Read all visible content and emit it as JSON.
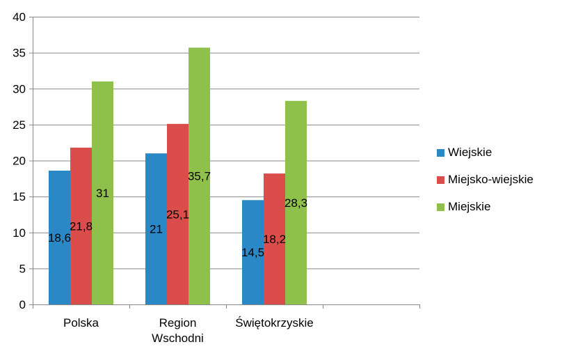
{
  "chart_data": {
    "type": "bar",
    "categories": [
      "Polska",
      "Region\nWschodni",
      "Świętokrzyskie",
      ""
    ],
    "series": [
      {
        "name": "Wiejskie",
        "values": [
          18.6,
          21,
          14.5,
          null
        ],
        "labels": [
          "18,6",
          "21",
          "14,5",
          ""
        ],
        "color": "#2b88c7"
      },
      {
        "name": "Miejsko-wiejskie",
        "values": [
          21.8,
          25.1,
          18.2,
          null
        ],
        "labels": [
          "21,8",
          "25,1",
          "18,2",
          ""
        ],
        "color": "#da4d4a"
      },
      {
        "name": "Miejskie",
        "values": [
          31,
          35.7,
          28.3,
          null
        ],
        "labels": [
          "31",
          "35,7",
          "28,3",
          ""
        ],
        "color": "#8fc04c"
      }
    ],
    "yticks": [
      "0",
      "5",
      "10",
      "15",
      "20",
      "25",
      "30",
      "35",
      "40"
    ],
    "ylim": [
      0,
      40
    ],
    "grid": true,
    "legend_position": "right",
    "title": "",
    "xlabel": "",
    "ylabel": ""
  }
}
